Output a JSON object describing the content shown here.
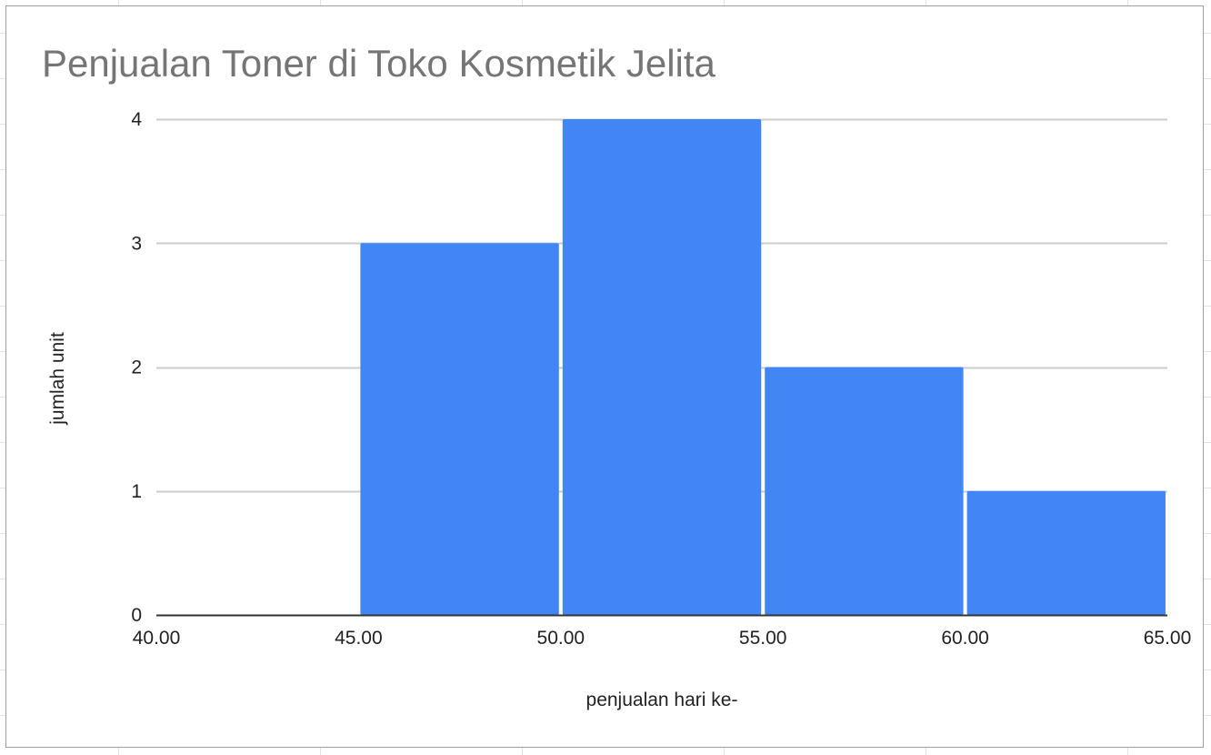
{
  "colors": {
    "bar": "#4285f4",
    "gridline": "#cccccc",
    "baseline": "#333333",
    "title": "#757575",
    "text": "#222222"
  },
  "chart_data": {
    "type": "bar",
    "subtype": "histogram",
    "title": "Penjualan Toner di Toko Kosmetik Jelita",
    "xlabel": "penjualan hari ke-",
    "ylabel": "jumlah unit",
    "x_ticks": [
      "40.00",
      "45.00",
      "50.00",
      "55.00",
      "60.00",
      "65.00"
    ],
    "y_ticks": [
      "0",
      "1",
      "2",
      "3",
      "4"
    ],
    "xlim": [
      40,
      65
    ],
    "ylim": [
      0,
      4
    ],
    "grid": true,
    "legend": "none",
    "bins": [
      {
        "start": 45,
        "end": 50,
        "value": 3
      },
      {
        "start": 50,
        "end": 55,
        "value": 4
      },
      {
        "start": 55,
        "end": 60,
        "value": 2
      },
      {
        "start": 60,
        "end": 65,
        "value": 1
      }
    ]
  }
}
